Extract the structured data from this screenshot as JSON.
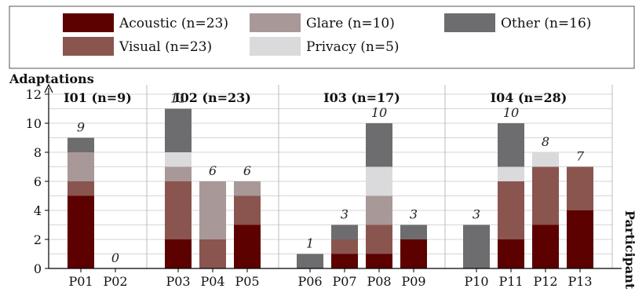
{
  "chart_data": {
    "type": "bar",
    "stacked": true,
    "ylabel": "Adaptations",
    "xlabel": "Participant",
    "ylim": [
      0,
      12
    ],
    "yticks": [
      0,
      2,
      4,
      6,
      8,
      10,
      12
    ],
    "grid": true,
    "legend_position": "top",
    "series": [
      {
        "key": "acoustic",
        "label": "Acoustic (n=23)",
        "color": "#5c0000"
      },
      {
        "key": "visual",
        "label": "Visual (n=23)",
        "color": "#8a554f"
      },
      {
        "key": "glare",
        "label": "Glare (n=10)",
        "color": "#a99898"
      },
      {
        "key": "privacy",
        "label": "Privacy (n=5)",
        "color": "#dadadc"
      },
      {
        "key": "other",
        "label": "Other (n=16)",
        "color": "#6d6d70"
      }
    ],
    "groups": [
      {
        "label": "I01 (n=9)",
        "participants": [
          "P01",
          "P02"
        ]
      },
      {
        "label": "I02 (n=23)",
        "participants": [
          "P03",
          "P04",
          "P05"
        ]
      },
      {
        "label": "I03 (n=17)",
        "participants": [
          "P06",
          "P07",
          "P08",
          "P09"
        ]
      },
      {
        "label": "I04 (n=28)",
        "participants": [
          "P10",
          "P11",
          "P12",
          "P13"
        ]
      }
    ],
    "bars": [
      {
        "participant": "P01",
        "total": "9",
        "acoustic": 5,
        "visual": 1,
        "glare": 2,
        "privacy": 0,
        "other": 1
      },
      {
        "participant": "P02",
        "total": "0",
        "acoustic": 0,
        "visual": 0,
        "glare": 0,
        "privacy": 0,
        "other": 0
      },
      {
        "participant": "P03",
        "total": "11",
        "acoustic": 2,
        "visual": 4,
        "glare": 1,
        "privacy": 1,
        "other": 3
      },
      {
        "participant": "P04",
        "total": "6",
        "acoustic": 0,
        "visual": 2,
        "glare": 4,
        "privacy": 0,
        "other": 0
      },
      {
        "participant": "P05",
        "total": "6",
        "acoustic": 3,
        "visual": 2,
        "glare": 1,
        "privacy": 0,
        "other": 0
      },
      {
        "participant": "P06",
        "total": "1",
        "acoustic": 0,
        "visual": 0,
        "glare": 0,
        "privacy": 0,
        "other": 1
      },
      {
        "participant": "P07",
        "total": "3",
        "acoustic": 1,
        "visual": 1,
        "glare": 0,
        "privacy": 0,
        "other": 1
      },
      {
        "participant": "P08",
        "total": "10",
        "acoustic": 1,
        "visual": 2,
        "glare": 2,
        "privacy": 2,
        "other": 3
      },
      {
        "participant": "P09",
        "total": "3",
        "acoustic": 2,
        "visual": 0,
        "glare": 0,
        "privacy": 0,
        "other": 1
      },
      {
        "participant": "P10",
        "total": "3",
        "acoustic": 0,
        "visual": 0,
        "glare": 0,
        "privacy": 0,
        "other": 3
      },
      {
        "participant": "P11",
        "total": "10",
        "acoustic": 2,
        "visual": 4,
        "glare": 0,
        "privacy": 1,
        "other": 3
      },
      {
        "participant": "P12",
        "total": "8",
        "acoustic": 3,
        "visual": 4,
        "glare": 0,
        "privacy": 1,
        "other": 0
      },
      {
        "participant": "P13",
        "total": "7",
        "acoustic": 4,
        "visual": 3,
        "glare": 0,
        "privacy": 0,
        "other": 0
      }
    ]
  }
}
